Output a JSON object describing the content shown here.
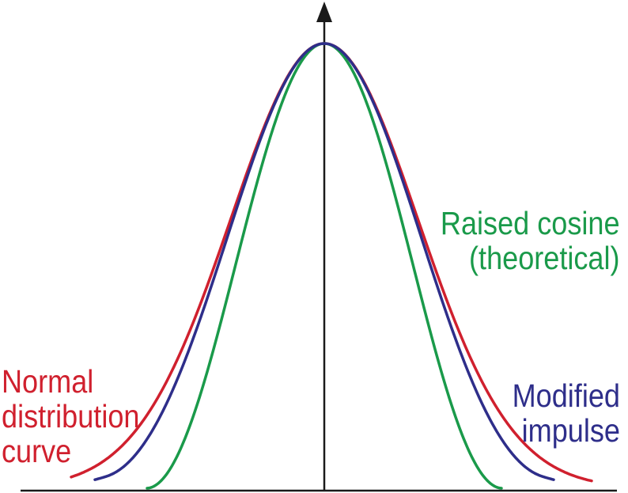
{
  "labels": {
    "raised_cosine": {
      "lines": [
        "Raised cosine",
        "(theoretical)"
      ]
    },
    "modified_impulse": {
      "lines": [
        "Modified",
        "impulse"
      ]
    },
    "normal_distribution": {
      "lines": [
        "Normal",
        "distribution",
        "curve"
      ]
    }
  },
  "colors": {
    "normal_distribution": "#d0202e",
    "raised_cosine": "#1a9a4a",
    "modified_impulse": "#2e2e8a",
    "axis": "#1a1a1a"
  }
}
